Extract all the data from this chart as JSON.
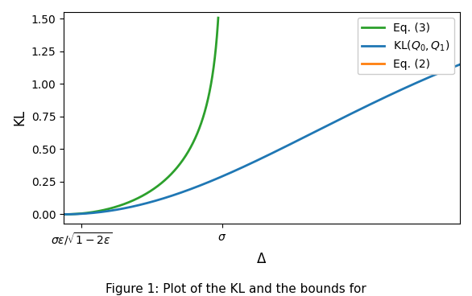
{
  "sigma": 1.0,
  "epsilon": 0.1,
  "ylim": [
    -0.07,
    1.55
  ],
  "yticks": [
    0.0,
    0.25,
    0.5,
    0.75,
    1.0,
    1.25,
    1.5
  ],
  "ylabel": "KL",
  "xlabel": "$\\Delta$",
  "line_blue_color": "#1f77b4",
  "line_orange_color": "#ff7f0e",
  "line_green_color": "#2ca02c",
  "line_width": 2.0,
  "legend_label_blue": "$\\mathrm{KL}(Q_0, Q_1)$",
  "legend_label_orange": "Eq. (2)",
  "legend_label_green": "Eq. (3)",
  "figsize": [
    5.86,
    3.68
  ],
  "dpi": 100,
  "caption": "Figure 1: Plot of the KL and the bounds for"
}
